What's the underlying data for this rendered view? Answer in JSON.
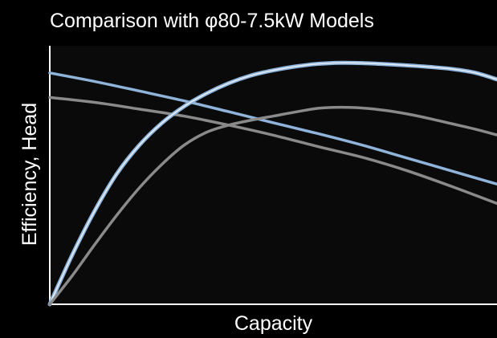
{
  "chart_data": {
    "type": "line",
    "title": "Comparison with φ80-7.5kW Models",
    "xlabel": "Capacity",
    "ylabel": "Efficiency, Head",
    "xlim": [
      0,
      100
    ],
    "ylim": [
      0,
      100
    ],
    "grid": false,
    "legend": "none",
    "colors": {
      "background": "#000000",
      "plot_background": "#0a0a0a",
      "axes": "#ffffff",
      "text": "#ffffff",
      "blue": "#8fb3d9",
      "blue_core": "#e6f0fa",
      "gray": "#8a8a8a"
    },
    "series": [
      {
        "color": "#8fb3d9",
        "x": [
          0,
          10,
          20,
          30,
          40,
          50,
          60,
          70,
          80,
          90,
          100
        ],
        "values": [
          89.5,
          86.2,
          82.5,
          78.7,
          74.5,
          70.2,
          66,
          61.5,
          56.5,
          51.5,
          46.5
        ]
      },
      {
        "color": "#8a8a8a",
        "x": [
          0,
          10,
          20,
          30,
          40,
          50,
          60,
          70,
          80,
          90,
          100
        ],
        "values": [
          80,
          78.1,
          75.5,
          72.8,
          69.3,
          65.4,
          61,
          56.8,
          51.6,
          45.5,
          39
        ]
      },
      {
        "color": "#8fb3d9",
        "outline": true,
        "x": [
          0,
          5,
          10,
          15,
          20,
          25,
          30,
          35,
          40,
          45,
          50,
          55,
          60,
          65,
          70,
          75,
          80,
          85,
          90,
          95,
          100
        ],
        "values": [
          0,
          19,
          36,
          50.5,
          61.5,
          70,
          76.5,
          81.5,
          85.5,
          88.5,
          90.5,
          92,
          93,
          93.4,
          93.3,
          92.9,
          92.4,
          91.8,
          91,
          89.6,
          87
        ]
      },
      {
        "color": "#8a8a8a",
        "x": [
          0,
          5,
          10,
          15,
          20,
          25,
          30,
          35,
          40,
          45,
          50,
          55,
          60,
          65,
          70,
          75,
          80,
          85,
          90,
          95,
          100
        ],
        "values": [
          0,
          11,
          23,
          34.5,
          45,
          54,
          61.5,
          66.5,
          69.3,
          71.2,
          72.8,
          74.4,
          75.8,
          76.2,
          75.9,
          75,
          73.6,
          71.8,
          69.8,
          67.8,
          65.5
        ]
      }
    ]
  }
}
